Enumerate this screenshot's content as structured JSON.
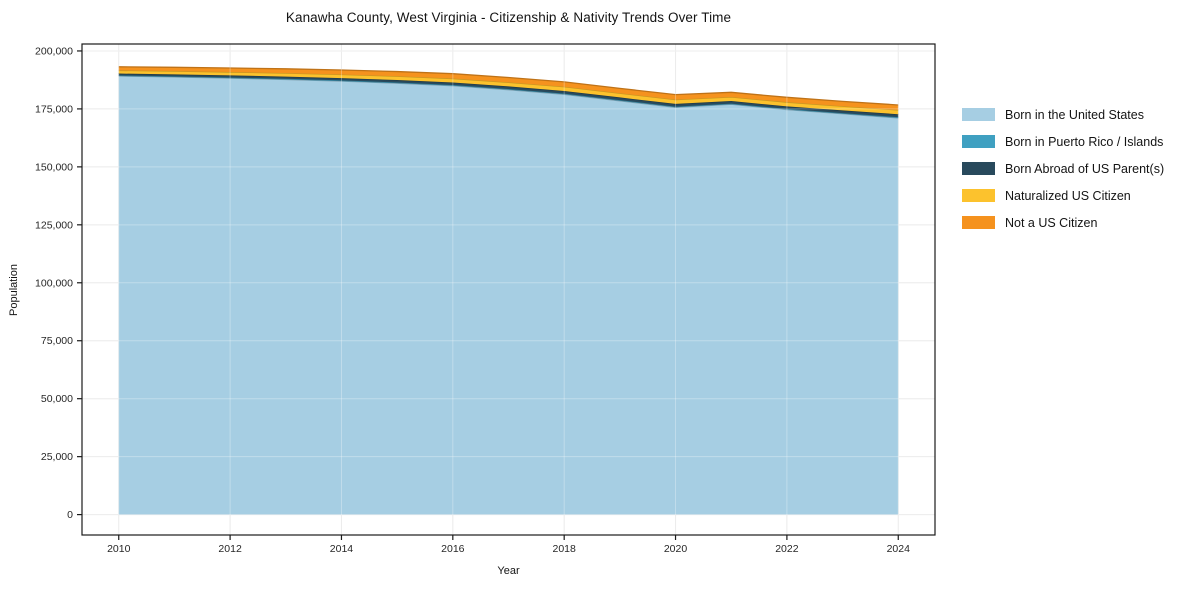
{
  "figure": {
    "title": "Kanawha County, West Virginia - Citizenship & Nativity Trends Over Time",
    "xlabel": "Year",
    "ylabel": "Population"
  },
  "chart_data": {
    "type": "area",
    "stacked": true,
    "title": "Kanawha County, West Virginia - Citizenship & Nativity Trends Over Time",
    "xlabel": "Year",
    "ylabel": "Population",
    "grid": true,
    "legend_position": "right-outside",
    "x": [
      2010,
      2011,
      2012,
      2013,
      2014,
      2015,
      2016,
      2017,
      2018,
      2019,
      2020,
      2021,
      2022,
      2023,
      2024
    ],
    "series": [
      {
        "name": "Born in the United States",
        "color": "#a6cee3",
        "values": [
          189200,
          188800,
          188300,
          187700,
          187000,
          186100,
          185000,
          183300,
          181300,
          178500,
          175700,
          177000,
          174700,
          172900,
          171100
        ]
      },
      {
        "name": "Born in Puerto Rico / Islands",
        "color": "#3fa0c1",
        "values": [
          250,
          250,
          250,
          300,
          300,
          300,
          300,
          300,
          300,
          300,
          300,
          300,
          300,
          300,
          350
        ]
      },
      {
        "name": "Born Abroad of US Parent(s)",
        "color": "#28495c",
        "values": [
          800,
          850,
          900,
          950,
          1000,
          1050,
          1100,
          1100,
          1150,
          1150,
          1150,
          1100,
          1100,
          1150,
          1250
        ]
      },
      {
        "name": "Naturalized US Citizen",
        "color": "#fcc22d",
        "values": [
          1350,
          1400,
          1450,
          1500,
          1550,
          1650,
          1700,
          1750,
          1800,
          1800,
          1850,
          1750,
          1800,
          1800,
          1850
        ]
      },
      {
        "name": "Not a US Citizen",
        "color": "#f5921e",
        "values": [
          1550,
          1650,
          1750,
          1850,
          1950,
          2000,
          2100,
          2100,
          2100,
          2100,
          2150,
          2000,
          2100,
          2100,
          2150
        ]
      }
    ],
    "xticks": [
      2010,
      2012,
      2014,
      2016,
      2018,
      2020,
      2022,
      2024
    ],
    "xtick_labels": [
      "2010",
      "2012",
      "2014",
      "2016",
      "2018",
      "2020",
      "2022",
      "2024"
    ],
    "yticks": [
      0,
      25000,
      50000,
      75000,
      100000,
      125000,
      150000,
      175000,
      200000
    ],
    "ytick_labels": [
      "0",
      "25,000",
      "50,000",
      "75,000",
      "100,000",
      "125,000",
      "150,000",
      "175,000",
      "200,000"
    ],
    "xlim": [
      2009.34,
      2024.66
    ],
    "ylim": [
      -8800,
      203000
    ]
  }
}
